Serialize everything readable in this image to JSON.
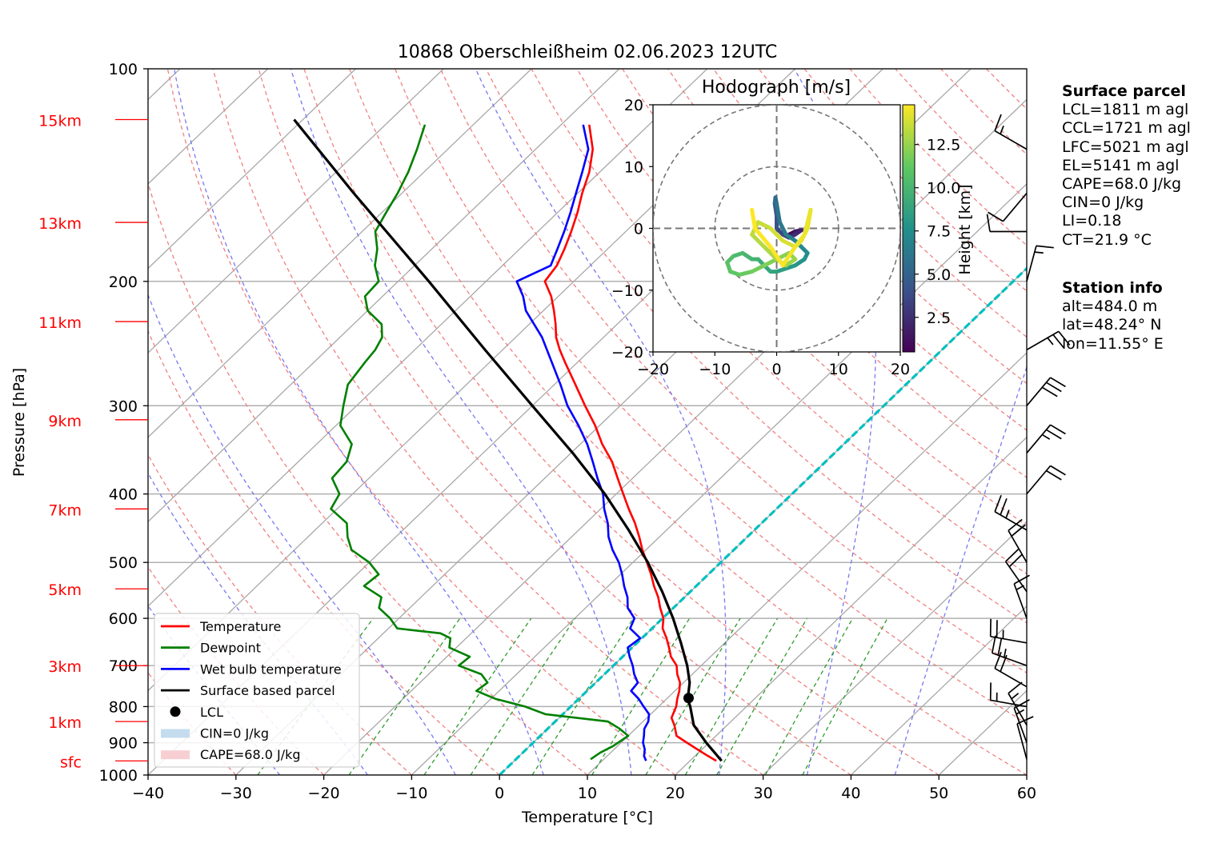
{
  "chart_data": {
    "type": "skew-t",
    "title": "10868 Oberschleißheim 02.06.2023 12UTC",
    "xlabel": "Temperature [°C]",
    "ylabel": "Pressure [hPa]",
    "xlim": [
      -40,
      60
    ],
    "ylim": [
      1000,
      100
    ],
    "y_scale": "log",
    "grid": true,
    "legend_position": "lower-left",
    "x_ticks": [
      "−40",
      "−30",
      "−20",
      "−10",
      "0",
      "10",
      "20",
      "30",
      "40",
      "50",
      "60"
    ],
    "x_tick_values": [
      -40,
      -30,
      -20,
      -10,
      0,
      10,
      20,
      30,
      40,
      50,
      60
    ],
    "p_ticks": [
      "100",
      "200",
      "300",
      "400",
      "500",
      "600",
      "700",
      "800",
      "900",
      "1000"
    ],
    "p_tick_values": [
      100,
      200,
      300,
      400,
      500,
      600,
      700,
      800,
      900,
      1000
    ],
    "height_labels": [
      {
        "label": "sfc",
        "p": 955
      },
      {
        "label": "1km",
        "p": 840
      },
      {
        "label": "3km",
        "p": 700
      },
      {
        "label": "5km",
        "p": 545
      },
      {
        "label": "7km",
        "p": 420
      },
      {
        "label": "9km",
        "p": 314
      },
      {
        "label": "11km",
        "p": 228
      },
      {
        "label": "13km",
        "p": 165
      },
      {
        "label": "15km",
        "p": 118
      }
    ],
    "series": [
      {
        "name": "Temperature",
        "color": "#ff0000",
        "p": [
          955,
          940,
          925,
          900,
          880,
          850,
          830,
          800,
          780,
          760,
          740,
          720,
          700,
          680,
          660,
          640,
          620,
          600,
          580,
          560,
          540,
          520,
          500,
          480,
          460,
          440,
          420,
          400,
          380,
          360,
          340,
          320,
          300,
          280,
          260,
          250,
          240,
          230,
          220,
          210,
          200,
          190,
          180,
          170,
          160,
          150,
          140,
          130,
          120
        ],
        "t": [
          23,
          21.5,
          20,
          17.5,
          15.5,
          14,
          12.8,
          12,
          11.2,
          10.5,
          9.6,
          8.3,
          7.2,
          5.5,
          4.2,
          2.8,
          1.2,
          0.1,
          -1.5,
          -3.0,
          -4.8,
          -6.5,
          -8.4,
          -10.4,
          -12.3,
          -14.4,
          -16.8,
          -19.2,
          -21.7,
          -24.3,
          -27.5,
          -30.5,
          -34,
          -37.6,
          -41.5,
          -43.5,
          -45.4,
          -47,
          -48.8,
          -50.8,
          -53.3,
          -53.8,
          -54.9,
          -56.2,
          -57.7,
          -59.5,
          -61.2,
          -63.5,
          -66.8
        ]
      },
      {
        "name": "Dewpoint",
        "color": "#008000",
        "p": [
          950,
          930,
          910,
          880,
          860,
          840,
          820,
          800,
          780,
          760,
          740,
          720,
          700,
          680,
          660,
          640,
          630,
          620,
          600,
          580,
          560,
          540,
          520,
          500,
          480,
          460,
          440,
          420,
          400,
          380,
          360,
          340,
          320,
          300,
          280,
          260,
          250,
          240,
          230,
          220,
          210,
          200,
          190,
          180,
          170,
          160,
          150,
          140,
          130,
          120
        ],
        "t": [
          8.5,
          8.8,
          9.5,
          10,
          8.2,
          6,
          -2,
          -5.2,
          -9.5,
          -12.6,
          -12.3,
          -14,
          -17.6,
          -17.4,
          -20.8,
          -21.8,
          -23.5,
          -29,
          -31,
          -33.5,
          -34.5,
          -37.8,
          -37.5,
          -40,
          -43.5,
          -45.5,
          -47.2,
          -50.7,
          -51.5,
          -54.2,
          -54.5,
          -56,
          -59.5,
          -61.5,
          -63.5,
          -64.2,
          -64.5,
          -65.2,
          -66.8,
          -70,
          -72,
          -72.2,
          -74.5,
          -76.2,
          -78.5,
          -79.5,
          -80.5,
          -81.8,
          -83.5,
          -85.5
        ]
      },
      {
        "name": "Wet bulb temperature",
        "color": "#0000ff",
        "p": [
          955,
          940,
          920,
          900,
          880,
          860,
          840,
          820,
          800,
          780,
          760,
          740,
          720,
          700,
          680,
          660,
          640,
          620,
          600,
          580,
          560,
          540,
          520,
          500,
          480,
          460,
          440,
          420,
          400,
          380,
          360,
          340,
          320,
          300,
          280,
          260,
          240,
          220,
          210,
          200,
          190,
          180,
          170,
          160,
          150,
          140,
          130,
          120
        ],
        "t": [
          15.0,
          14.2,
          13.5,
          12.5,
          11.8,
          11,
          10.6,
          9.8,
          8.3,
          6.8,
          5,
          4.8,
          3.4,
          2.2,
          0.8,
          -0.5,
          -0.2,
          -2.5,
          -3.2,
          -5.2,
          -6.5,
          -8.2,
          -9.8,
          -11.6,
          -13.8,
          -15.8,
          -17.5,
          -19.6,
          -21.5,
          -24,
          -26.5,
          -29.2,
          -32.4,
          -36,
          -39.3,
          -43,
          -47,
          -52,
          -54,
          -56.5,
          -54.5,
          -55.7,
          -57,
          -58.5,
          -60.2,
          -62,
          -64,
          -67.5
        ]
      },
      {
        "name": "Surface based parcel",
        "color": "#000000",
        "p": [
          955,
          900,
          850,
          800,
          780,
          740,
          700,
          650,
          600,
          550,
          500,
          450,
          400,
          350,
          300,
          250,
          200,
          150,
          118
        ],
        "t": [
          23.6,
          19.7,
          16.2,
          13.6,
          12.4,
          10.7,
          8.4,
          5.0,
          1.2,
          -3.2,
          -8.3,
          -14.3,
          -21.3,
          -29.8,
          -40,
          -52,
          -66.5,
          -85.5,
          -101
        ]
      }
    ],
    "lcl": {
      "name": "LCL",
      "p": 778,
      "t": 12.4
    },
    "legend": [
      {
        "label": "Temperature",
        "kind": "line",
        "color": "#ff0000"
      },
      {
        "label": "Dewpoint",
        "kind": "line",
        "color": "#008000"
      },
      {
        "label": "Wet bulb temperature",
        "kind": "line",
        "color": "#0000ff"
      },
      {
        "label": "Surface based parcel",
        "kind": "line",
        "color": "#000000"
      },
      {
        "label": "LCL",
        "kind": "dot",
        "color": "#000000"
      },
      {
        "label": "CIN=0 J/kg",
        "kind": "patch",
        "color": "#c5dcee"
      },
      {
        "label": "CAPE=68.0 J/kg",
        "kind": "patch",
        "color": "#f7cfd2"
      }
    ],
    "zero_isotherm_color": "#00c0c0",
    "hodograph": {
      "title": "Hodograph [m/s]",
      "xlim": [
        -20,
        20
      ],
      "ylim": [
        -20,
        20
      ],
      "ticks": [
        "−20",
        "−10",
        "0",
        "10",
        "20"
      ],
      "tick_values": [
        -20,
        -10,
        0,
        10,
        20
      ],
      "rings": [
        10,
        20
      ],
      "colorbar_label": "Height [km]",
      "colorbar_ticks": [
        "2.5",
        "5.0",
        "7.5",
        "10.0",
        "12.5"
      ],
      "colorbar_tick_values": [
        2.5,
        5.0,
        7.5,
        10.0,
        12.5
      ],
      "height_range": [
        0.5,
        14.8
      ],
      "u": [
        2,
        3,
        4,
        3,
        2,
        1,
        0,
        0,
        -0.3,
        -0.2,
        0,
        0.5,
        1.5,
        3,
        4,
        5,
        4.5,
        3,
        1.5,
        0,
        -1,
        -2,
        -3,
        -4,
        -5.5,
        -7,
        -8,
        -7.5,
        -6,
        -4,
        -2,
        0,
        2,
        3,
        1.5,
        0,
        -2,
        -4,
        -3,
        -1,
        1,
        3,
        4,
        5,
        5.5,
        4.5,
        3,
        1,
        -1,
        -3.5,
        -4
      ],
      "v": [
        -1,
        -0.5,
        -0.3,
        -1,
        -1.5,
        -1,
        0,
        2,
        4,
        5,
        4,
        1,
        -1,
        -2,
        -3,
        -4,
        -5,
        -6,
        -6.5,
        -7,
        -7,
        -6,
        -5,
        -5,
        -4,
        -4.5,
        -5.5,
        -7,
        -7.5,
        -7,
        -6,
        -5,
        -4,
        -5,
        -6,
        -5,
        -3,
        -1,
        1,
        0,
        -2,
        -3,
        -2,
        0,
        3,
        -1,
        -3,
        -6,
        -3,
        0,
        3
      ],
      "z": [
        0.5,
        1,
        1.5,
        2,
        2.5,
        3,
        3.5,
        4,
        4.5,
        5,
        5.5,
        6,
        6.3,
        6.6,
        6.9,
        7.2,
        7.5,
        7.8,
        8.1,
        8.4,
        8.7,
        9,
        9.3,
        9.6,
        9.9,
        10.2,
        10.5,
        10.8,
        11.1,
        11.4,
        11.7,
        12,
        12.2,
        12.4,
        12.6,
        12.8,
        13,
        13.2,
        13.4,
        13.6,
        13.8,
        14,
        14.1,
        14.2,
        14.3,
        14.4,
        14.5,
        14.6,
        14.7,
        14.75,
        14.8
      ]
    },
    "wind_barbs": [
      {
        "p": 950,
        "dir": 345,
        "speed": 10
      },
      {
        "p": 900,
        "dir": 340,
        "speed": 15
      },
      {
        "p": 850,
        "dir": 330,
        "speed": 15
      },
      {
        "p": 800,
        "dir": 280,
        "speed": 15
      },
      {
        "p": 750,
        "dir": 300,
        "speed": 20
      },
      {
        "p": 700,
        "dir": 290,
        "speed": 25
      },
      {
        "p": 650,
        "dir": 280,
        "speed": 25
      },
      {
        "p": 600,
        "dir": 340,
        "speed": 15
      },
      {
        "p": 550,
        "dir": 325,
        "speed": 20
      },
      {
        "p": 500,
        "dir": 330,
        "speed": 20
      },
      {
        "p": 450,
        "dir": 300,
        "speed": 25
      },
      {
        "p": 400,
        "dir": 40,
        "speed": 20
      },
      {
        "p": 350,
        "dir": 40,
        "speed": 25
      },
      {
        "p": 300,
        "dir": 40,
        "speed": 30
      },
      {
        "p": 250,
        "dir": 60,
        "speed": 25
      },
      {
        "p": 200,
        "dir": 15,
        "speed": 15
      },
      {
        "p": 170,
        "dir": 270,
        "speed": 10
      },
      {
        "p": 150,
        "dir": 220,
        "speed": 10
      },
      {
        "p": 130,
        "dir": 300,
        "speed": 15
      }
    ]
  },
  "surface_parcel": {
    "header": "Surface parcel",
    "lines": [
      "LCL=1811 m agl",
      "CCL=1721 m agl",
      "LFC=5021 m agl",
      "EL=5141 m agl",
      "CAPE=68.0 J/kg",
      "CIN=0 J/kg",
      "LI=0.18",
      "CT=21.9 °C"
    ]
  },
  "station_info": {
    "header": "Station info",
    "lines": [
      "alt=484.0 m",
      "lat=48.24° N",
      "lon=11.55° E"
    ]
  }
}
